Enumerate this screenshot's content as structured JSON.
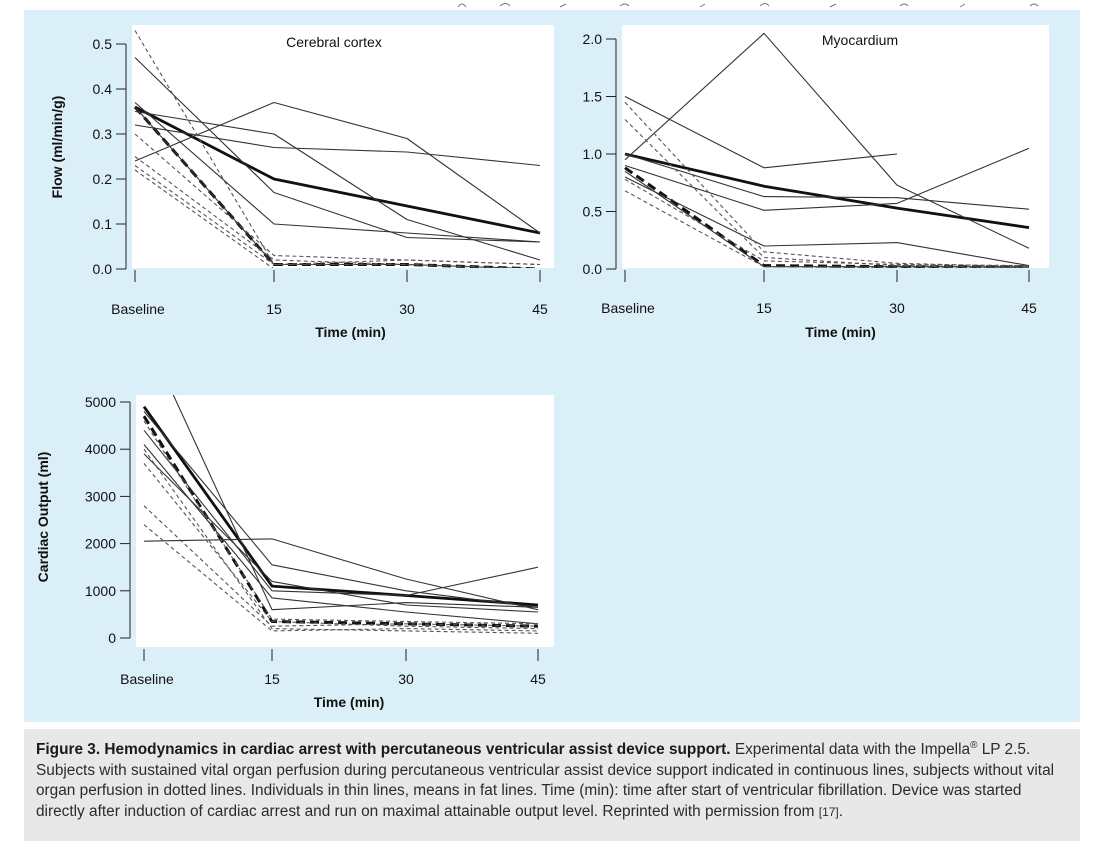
{
  "caption": {
    "figure_label": "Figure 3. Hemodynamics in cardiac arrest with percutaneous ventricular assist device support.",
    "text_part1": "Experimental data with the Impella",
    "registered_mark": "®",
    "text_part2": "LP 2.5. Subjects with sustained vital organ perfusion during percutaneous ventricular assist device support indicated in continuous lines, subjects without vital organ perfusion in dotted lines. Individuals in thin lines, means in fat lines. Time (min): time after start of ventricular fibrillation. Device was started directly after induction of cardiac arrest and run on maximal attainable output level. Reprinted with permission from",
    "reference": "[17]",
    "end_punct": "."
  },
  "colors": {
    "panel_background": "#dbeff8",
    "caption_background": "#e8e8e8",
    "plot_background": "#ffffff",
    "line": "#333333"
  },
  "chart_data": [
    {
      "type": "line",
      "title": "Cerebral cortex",
      "xlabel": "Time (min)",
      "ylabel": "Flow (ml/min/g)",
      "x": [
        "Baseline",
        "15",
        "30",
        "45"
      ],
      "ylim": [
        0,
        0.52
      ],
      "yticks": [
        "0.0",
        "0.1",
        "0.2",
        "0.3",
        "0.4",
        "0.5"
      ],
      "grid": false,
      "series": [
        {
          "style": "mean-continuous",
          "values": [
            0.36,
            0.2,
            0.14,
            0.08
          ]
        },
        {
          "style": "mean-dotted",
          "values": [
            0.36,
            0.01,
            0.01,
            0.0
          ]
        },
        {
          "style": "thin-continuous",
          "values": [
            0.47,
            0.17,
            0.07,
            0.06
          ]
        },
        {
          "style": "thin-continuous",
          "values": [
            0.35,
            0.3,
            0.11,
            0.02
          ]
        },
        {
          "style": "thin-continuous",
          "values": [
            0.32,
            0.27,
            0.26,
            0.23
          ]
        },
        {
          "style": "thin-continuous",
          "values": [
            0.24,
            0.37,
            0.29,
            0.08
          ]
        },
        {
          "style": "thin-continuous",
          "values": [
            0.37,
            0.1,
            0.08,
            0.06
          ]
        },
        {
          "style": "thin-continuous",
          "values": [
            0.36,
            0.01,
            0.01,
            0.0
          ]
        },
        {
          "style": "thin-dotted",
          "values": [
            0.53,
            0.01,
            0.01,
            0.0
          ]
        },
        {
          "style": "thin-dotted",
          "values": [
            0.3,
            0.03,
            0.02,
            0.01
          ]
        },
        {
          "style": "thin-dotted",
          "values": [
            0.25,
            0.02,
            0.01,
            0.0
          ]
        },
        {
          "style": "thin-dotted",
          "values": [
            0.23,
            0.01,
            0.02,
            0.01
          ]
        },
        {
          "style": "thin-dotted",
          "values": [
            0.22,
            0.0,
            0.0,
            0.0
          ]
        }
      ]
    },
    {
      "type": "line",
      "title": "Myocardium",
      "xlabel": "Time (min)",
      "ylabel": "",
      "x": [
        "Baseline",
        "15",
        "30",
        "45"
      ],
      "ylim": [
        0,
        2.05
      ],
      "yticks": [
        "0.0",
        "0.5",
        "1.0",
        "1.5",
        "2.0"
      ],
      "grid": false,
      "series": [
        {
          "style": "mean-continuous",
          "values": [
            1.0,
            0.72,
            0.53,
            0.36
          ]
        },
        {
          "style": "mean-dotted",
          "values": [
            0.88,
            0.03,
            0.02,
            0.02
          ]
        },
        {
          "style": "thin-continuous",
          "values": [
            0.95,
            2.05,
            0.73,
            0.18
          ]
        },
        {
          "style": "thin-continuous",
          "values": [
            1.5,
            0.88,
            1.0,
            null
          ]
        },
        {
          "style": "thin-continuous",
          "values": [
            0.9,
            0.51,
            0.57,
            1.05
          ]
        },
        {
          "style": "thin-continuous",
          "values": [
            1.0,
            0.63,
            0.62,
            0.52
          ]
        },
        {
          "style": "thin-continuous",
          "values": [
            0.8,
            0.2,
            0.23,
            0.03
          ]
        },
        {
          "style": "thin-continuous",
          "values": [
            0.85,
            0.02,
            0.02,
            0.02
          ]
        },
        {
          "style": "thin-dotted",
          "values": [
            1.45,
            0.15,
            0.05,
            0.02
          ]
        },
        {
          "style": "thin-dotted",
          "values": [
            1.3,
            0.1,
            0.03,
            0.01
          ]
        },
        {
          "style": "thin-dotted",
          "values": [
            0.78,
            0.07,
            0.04,
            0.03
          ]
        },
        {
          "style": "thin-dotted",
          "values": [
            0.68,
            0.02,
            0.01,
            0.01
          ]
        }
      ]
    },
    {
      "type": "line",
      "title": "",
      "xlabel": "Time (min)",
      "ylabel": "Cardiac Output (ml)",
      "x": [
        "Baseline",
        "15",
        "30",
        "45"
      ],
      "ylim": [
        -100,
        5180
      ],
      "yticks": [
        "0",
        "1000",
        "2000",
        "3000",
        "4000",
        "5000"
      ],
      "grid": false,
      "series": [
        {
          "style": "mean-continuous",
          "values": [
            4900,
            1100,
            900,
            700
          ]
        },
        {
          "style": "mean-dotted",
          "values": [
            4700,
            350,
            300,
            250
          ]
        },
        {
          "style": "thin-continuous",
          "values": [
            2050,
            2100,
            1250,
            600
          ]
        },
        {
          "style": "thin-continuous",
          "values": [
            4800,
            1550,
            1000,
            650
          ]
        },
        {
          "style": "thin-continuous",
          "values": [
            4400,
            1000,
            900,
            1500
          ]
        },
        {
          "style": "thin-continuous",
          "values": [
            4100,
            850,
            550,
            300
          ]
        },
        {
          "style": "thin-continuous",
          "values": [
            6500,
            600,
            750,
            650
          ]
        },
        {
          "style": "thin-continuous",
          "values": [
            3900,
            1200,
            700,
            550
          ]
        },
        {
          "style": "thin-dotted",
          "values": [
            4600,
            400,
            350,
            300
          ]
        },
        {
          "style": "thin-dotted",
          "values": [
            3700,
            350,
            250,
            200
          ]
        },
        {
          "style": "thin-dotted",
          "values": [
            2800,
            250,
            300,
            250
          ]
        },
        {
          "style": "thin-dotted",
          "values": [
            2400,
            150,
            200,
            150
          ]
        },
        {
          "style": "thin-dotted",
          "values": [
            4000,
            200,
            150,
            100
          ]
        }
      ]
    }
  ]
}
